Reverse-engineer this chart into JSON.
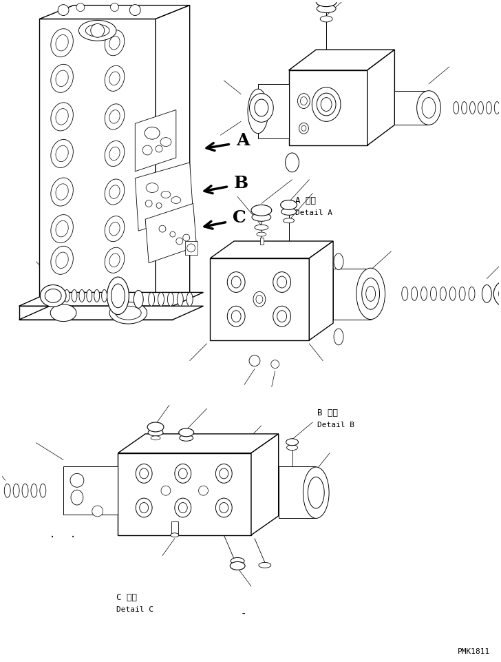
{
  "bg_color": "#ffffff",
  "fig_width": 7.28,
  "fig_height": 9.62,
  "dpi": 100,
  "watermark": "PMK1811",
  "label_A_jp": "A 詳細",
  "label_A_en": "Detail A",
  "label_B_jp": "B 詳細",
  "label_B_en": "Detail B",
  "label_C_jp": "C 詳細",
  "label_C_en": "Detail C"
}
